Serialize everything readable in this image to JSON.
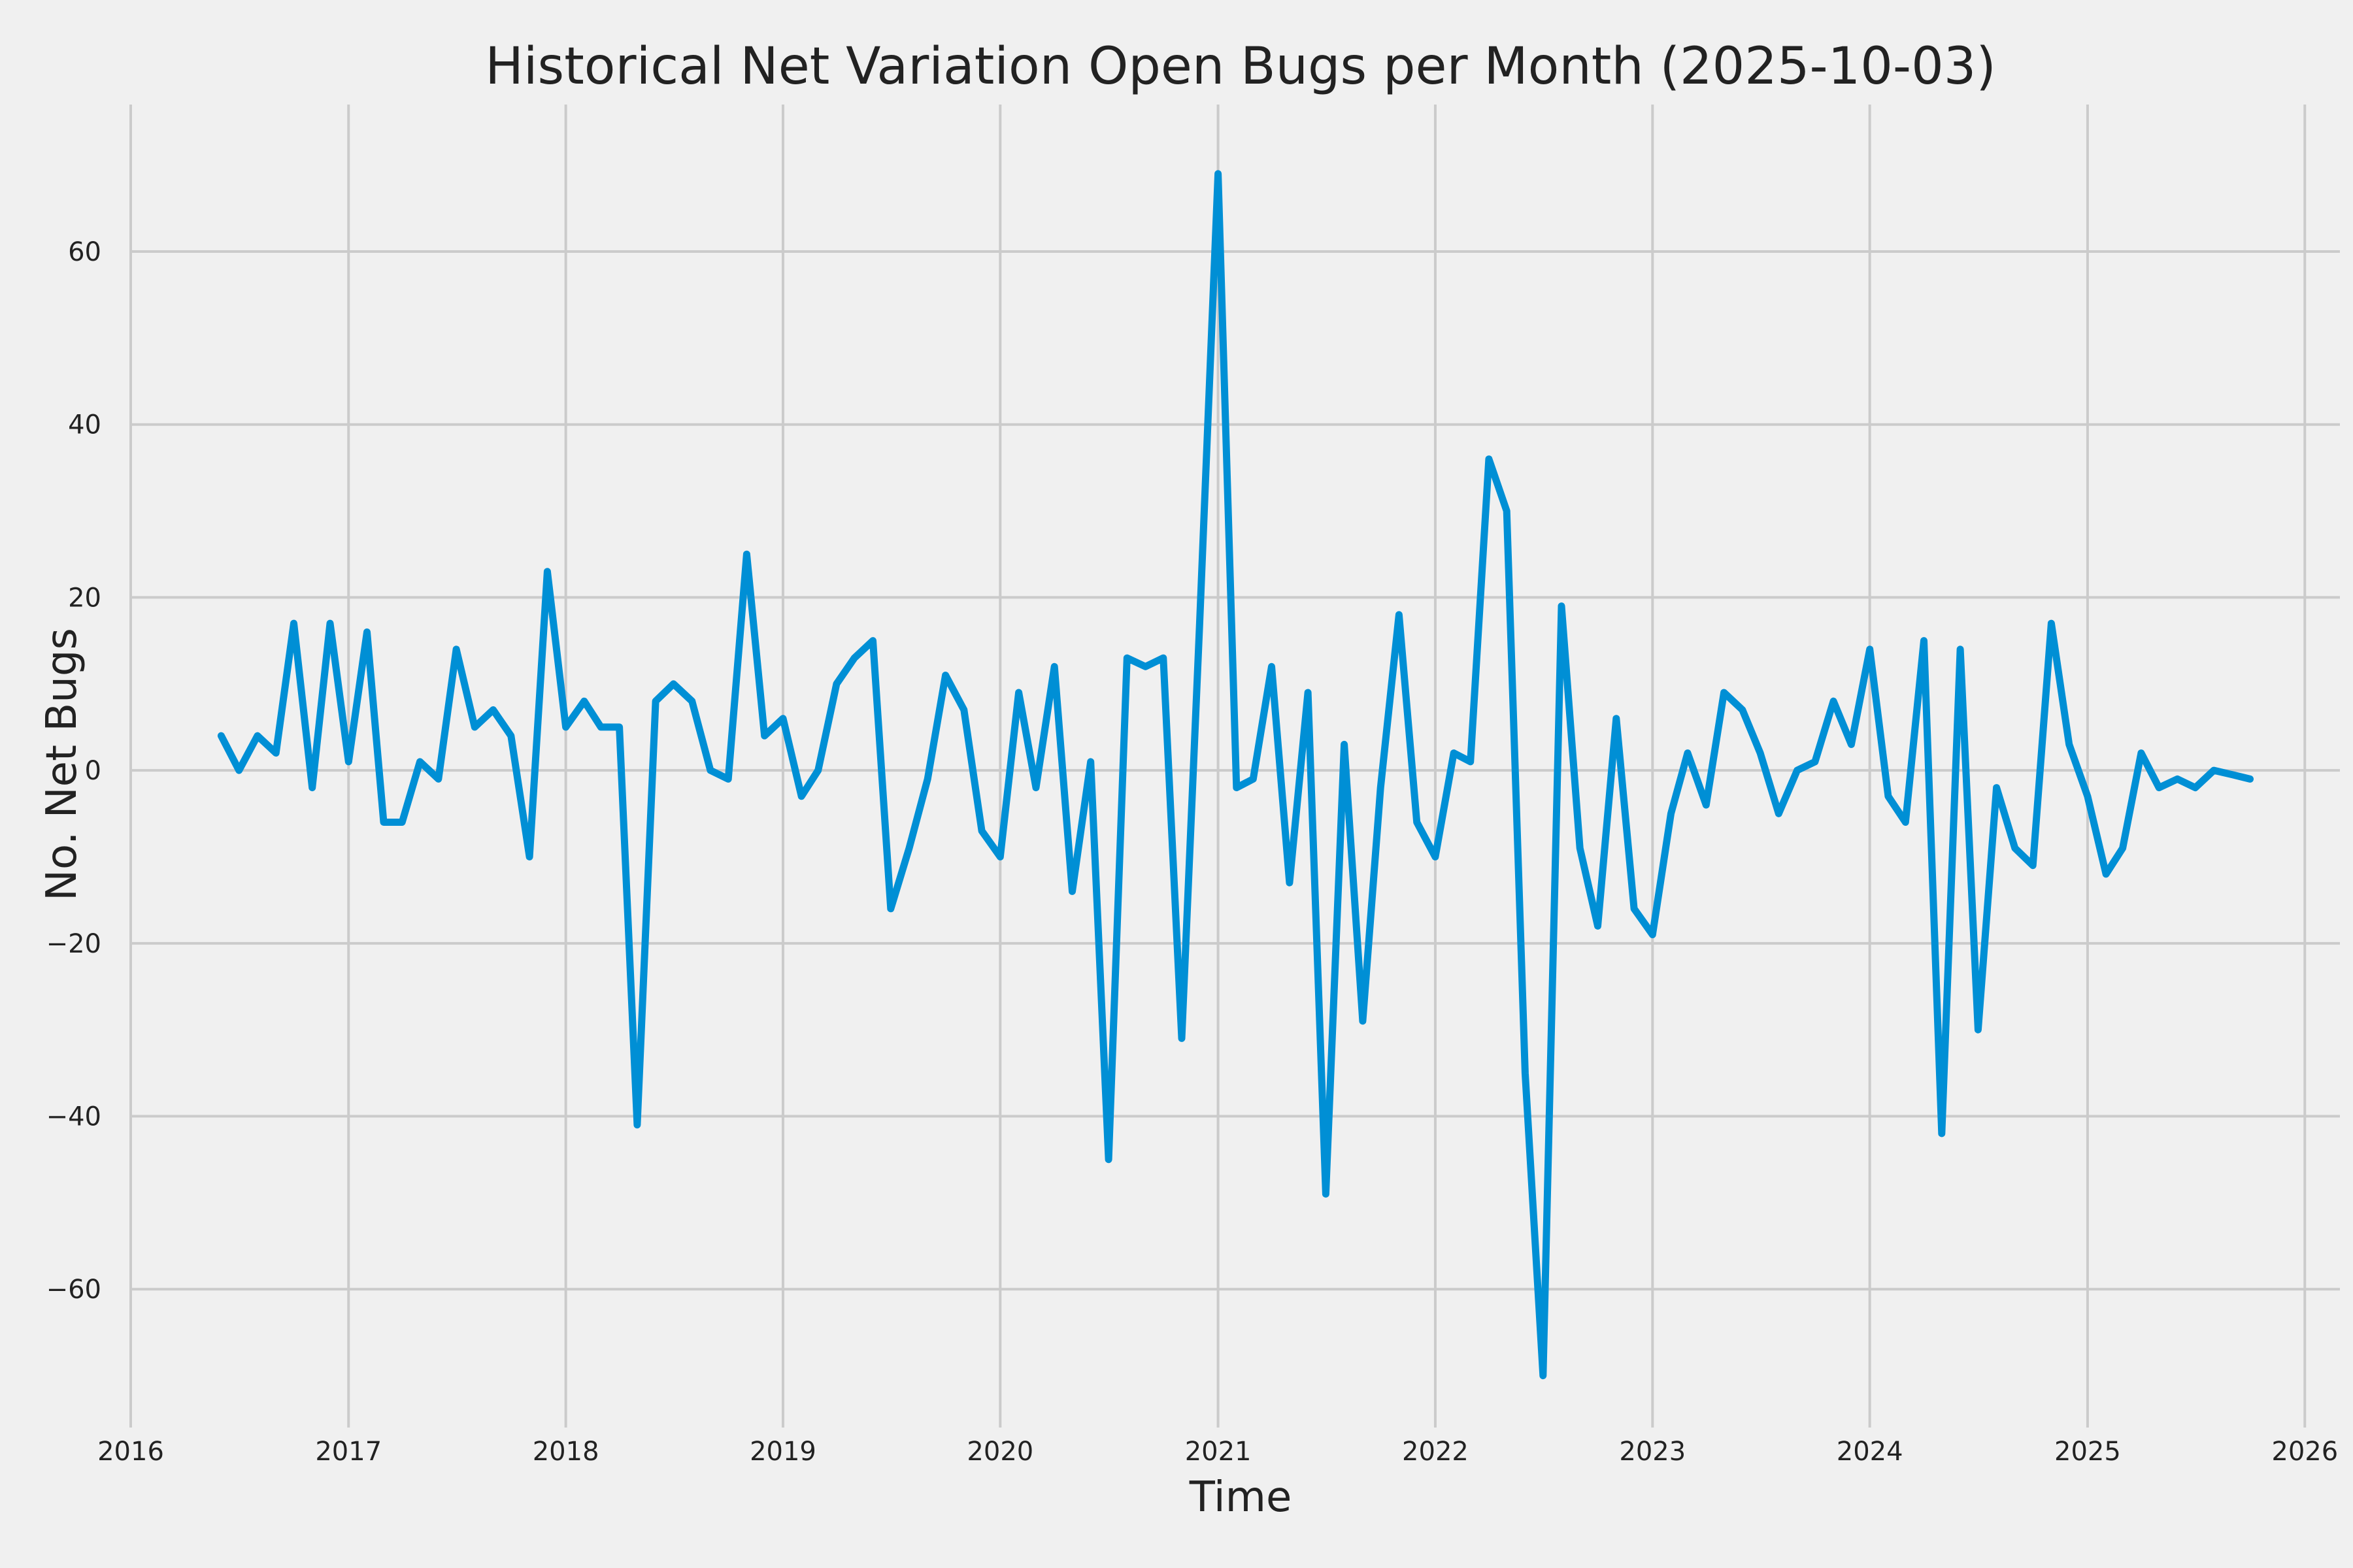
{
  "chart_data": {
    "type": "line",
    "title": "Historical Net Variation Open Bugs per Month (2025-10-03)",
    "xlabel": "Time",
    "ylabel": "No. Net Bugs",
    "xlim": [
      "2016-01-01",
      "2026-03-01"
    ],
    "ylim": [
      -76,
      77
    ],
    "x_ticks": [
      "2016",
      "2017",
      "2018",
      "2019",
      "2020",
      "2021",
      "2022",
      "2023",
      "2024",
      "2025",
      "2026"
    ],
    "y_ticks": [
      -60,
      -40,
      -20,
      0,
      20,
      40,
      60
    ],
    "y_tick_labels": [
      "−60",
      "−40",
      "−20",
      "0",
      "20",
      "40",
      "60"
    ],
    "grid": true,
    "colors": {
      "line": "#008fd5",
      "background": "#f0f0f0",
      "grid": "#cbcbcb"
    },
    "series": [
      {
        "x": [
          "2016-06",
          "2016-07",
          "2016-08",
          "2016-09",
          "2016-10",
          "2016-11",
          "2016-12",
          "2017-01",
          "2017-02",
          "2017-03",
          "2017-04",
          "2017-05",
          "2017-06",
          "2017-07",
          "2017-08",
          "2017-09",
          "2017-10",
          "2017-11",
          "2017-12",
          "2018-01",
          "2018-02",
          "2018-03",
          "2018-04",
          "2018-05",
          "2018-06",
          "2018-07",
          "2018-08",
          "2018-09",
          "2018-10",
          "2018-11",
          "2018-12",
          "2019-01",
          "2019-02",
          "2019-03",
          "2019-04",
          "2019-05",
          "2019-06",
          "2019-07",
          "2019-08",
          "2019-09",
          "2019-10",
          "2019-11",
          "2019-12",
          "2020-01",
          "2020-02",
          "2020-03",
          "2020-04",
          "2020-05",
          "2020-06",
          "2020-07",
          "2020-08",
          "2020-09",
          "2020-10",
          "2020-11",
          "2020-12",
          "2021-01",
          "2021-02",
          "2021-03",
          "2021-04",
          "2021-05",
          "2021-06",
          "2021-07",
          "2021-08",
          "2021-09",
          "2021-10",
          "2021-11",
          "2021-12",
          "2022-01",
          "2022-02",
          "2022-03",
          "2022-04",
          "2022-05",
          "2022-06",
          "2022-07",
          "2022-08",
          "2022-09",
          "2022-10",
          "2022-11",
          "2022-12",
          "2023-01",
          "2023-02",
          "2023-03",
          "2023-04",
          "2023-05",
          "2023-06",
          "2023-07",
          "2023-08",
          "2023-09",
          "2023-10",
          "2023-11",
          "2023-12",
          "2024-01",
          "2024-02",
          "2024-03",
          "2024-04",
          "2024-05",
          "2024-06",
          "2024-07",
          "2024-08",
          "2024-09",
          "2024-10",
          "2024-11",
          "2024-12",
          "2025-01",
          "2025-02",
          "2025-03",
          "2025-04",
          "2025-05",
          "2025-06",
          "2025-07",
          "2025-08",
          "2025-09",
          "2025-10"
        ],
        "values": [
          4,
          0,
          4,
          2,
          17,
          -2,
          17,
          1,
          16,
          -6,
          -6,
          1,
          -1,
          14,
          5,
          7,
          4,
          -10,
          23,
          5,
          8,
          5,
          5,
          -41,
          8,
          10,
          8,
          0,
          -1,
          25,
          4,
          6,
          -3,
          0,
          10,
          13,
          15,
          -16,
          -9,
          -1,
          11,
          7,
          -7,
          -10,
          9,
          -2,
          12,
          -14,
          1,
          -45,
          13,
          12,
          13,
          -31,
          17,
          69,
          -2,
          -1,
          12,
          -13,
          9,
          -49,
          3,
          -29,
          -2,
          18,
          -6,
          -10,
          2,
          1,
          36,
          30,
          -35,
          -70,
          19,
          -9,
          -18,
          6,
          -16,
          -19,
          -5,
          2,
          -4,
          9,
          7,
          2,
          -5,
          0,
          1,
          8,
          3,
          14,
          -3,
          -6,
          15,
          -42,
          14,
          -30,
          -2,
          -9,
          -11,
          17,
          3,
          -3,
          -12,
          -9,
          2,
          -2,
          -1,
          -2,
          0,
          -0.5,
          -1
        ]
      }
    ]
  }
}
